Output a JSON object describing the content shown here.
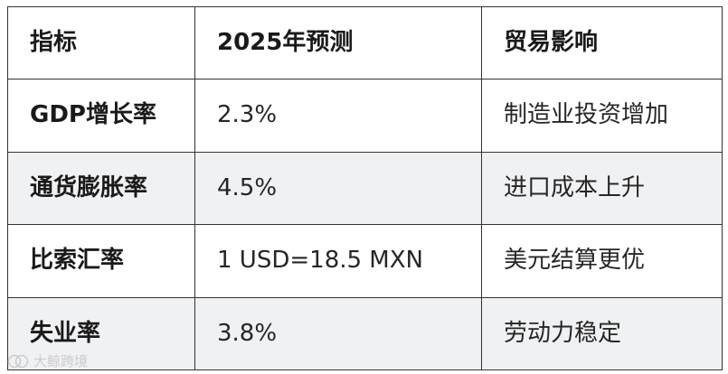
{
  "table": {
    "headers": [
      "指标",
      "2025年预测",
      "贸易影响"
    ],
    "rows": [
      {
        "metric": "GDP增长率",
        "forecast": "2.3%",
        "impact": "制造业投资增加"
      },
      {
        "metric": "通货膨胀率",
        "forecast": "4.5%",
        "impact": "进口成本上升"
      },
      {
        "metric": "比索汇率",
        "forecast": "1 USD=18.5 MXN",
        "impact": "美元结算更优"
      },
      {
        "metric": "失业率",
        "forecast": "3.8%",
        "impact": "劳动力稳定"
      }
    ]
  },
  "watermark": {
    "text": "大鲸跨境",
    "icon": "logo-mark-icon"
  },
  "colors": {
    "border": "#333333",
    "zebra": "#f0f1f3",
    "text": "#1a1a1a"
  }
}
